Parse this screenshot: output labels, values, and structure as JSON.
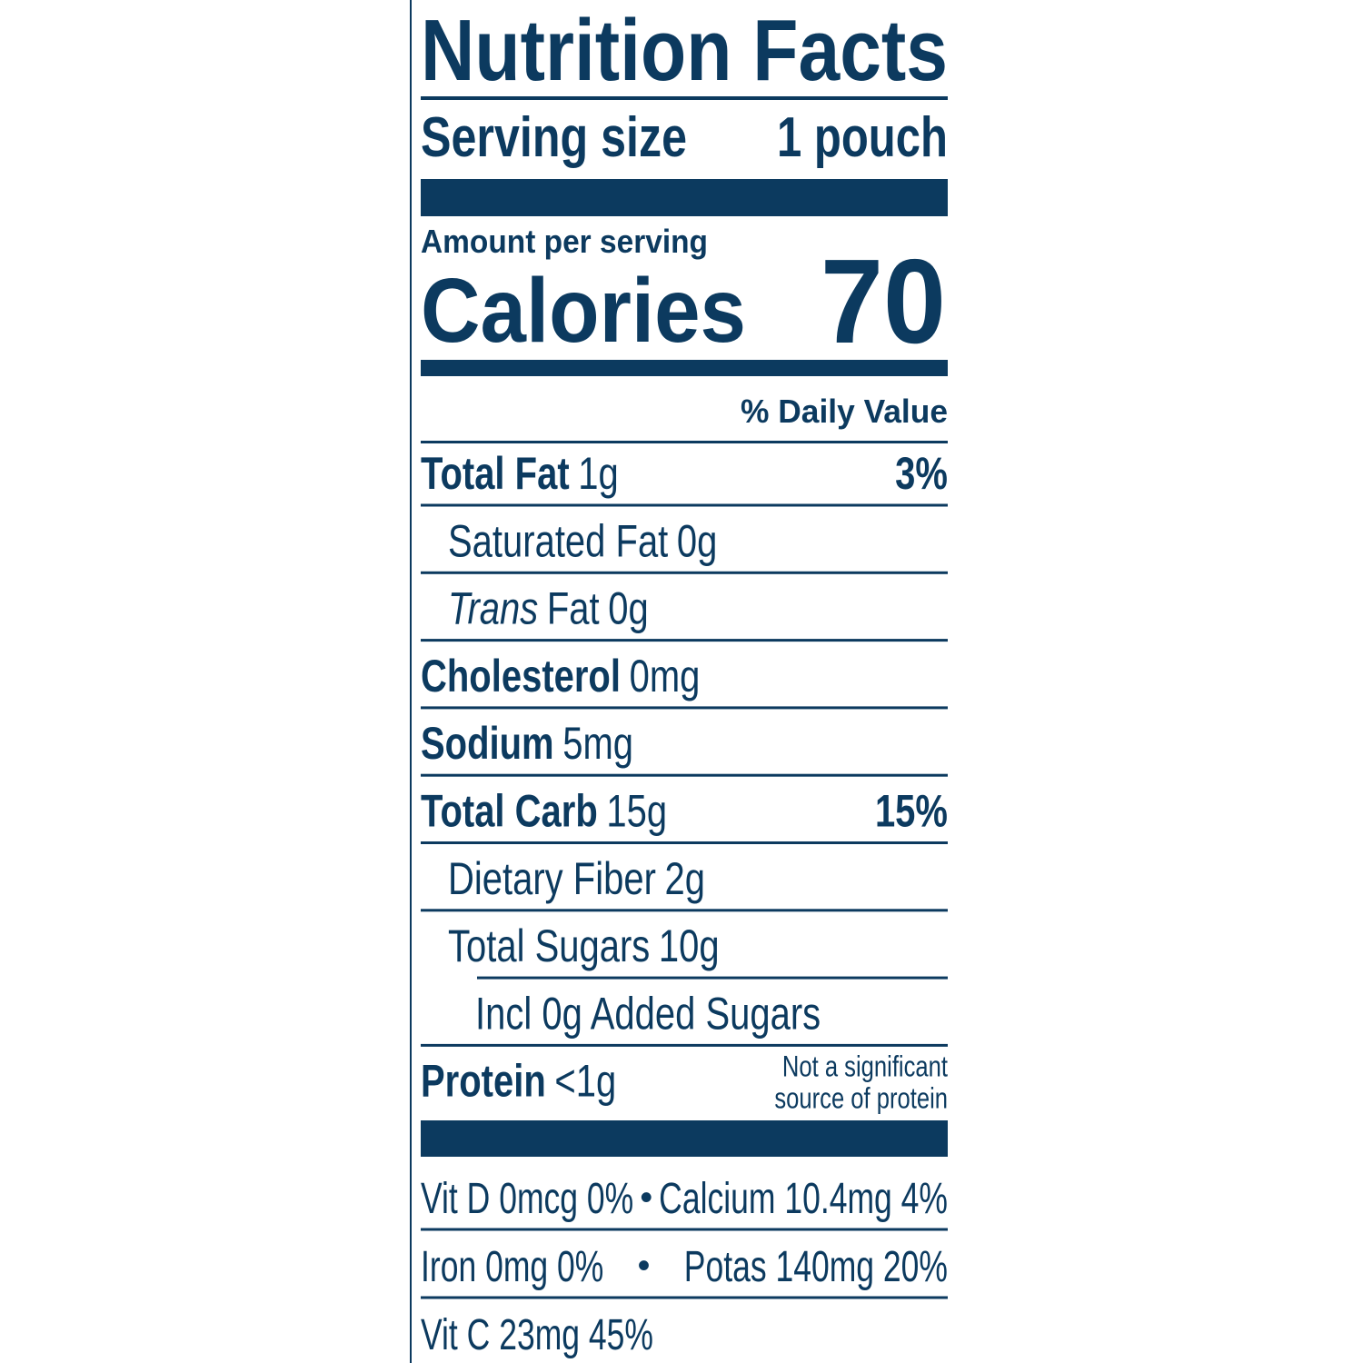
{
  "title": "Nutrition Facts",
  "serving": {
    "label": "Serving size",
    "value": "1 pouch"
  },
  "amount_per_serving": "Amount per serving",
  "calories": {
    "label": "Calories",
    "value": 70
  },
  "daily_value_header": "% Daily Value",
  "nutrients": [
    {
      "name": "Total Fat",
      "amount": "1g",
      "dv": "3%",
      "sub": [
        {
          "name": "Saturated Fat",
          "amount": "0g"
        },
        {
          "name_italic": "Trans",
          "name": "Fat",
          "amount": "0g"
        }
      ]
    },
    {
      "name": "Cholesterol",
      "amount": "0mg"
    },
    {
      "name": "Sodium",
      "amount": "5mg"
    },
    {
      "name": "Total Carb",
      "amount": "15g",
      "dv": "15%",
      "sub": [
        {
          "name": "Dietary Fiber",
          "amount": "2g"
        },
        {
          "name": "Total Sugars",
          "amount": "10g",
          "sub": [
            {
              "name": "Incl 0g Added Sugars"
            }
          ]
        }
      ]
    }
  ],
  "protein": {
    "name": "Protein",
    "amount": "<1g",
    "note": [
      "Not a significant",
      "source of protein"
    ]
  },
  "separator": "•",
  "vitamins": [
    [
      "Vit D 0mcg 0%",
      "Calcium 10.4mg 4%"
    ],
    [
      "Iron 0mg 0%",
      "Potas 140mg 20%"
    ],
    [
      "Vit C 23mg 45%"
    ]
  ]
}
